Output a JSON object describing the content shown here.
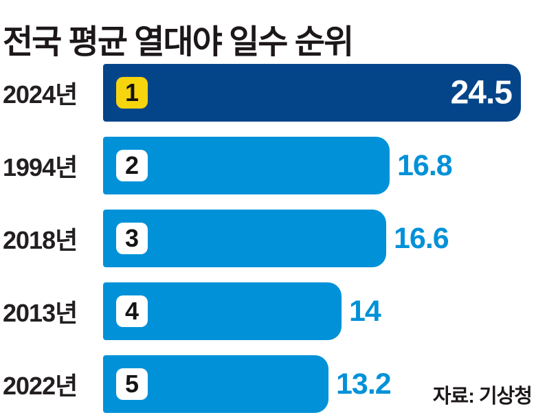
{
  "chart_data": {
    "type": "bar",
    "orientation": "horizontal",
    "title": "전국 평균 열대야 일수 순위",
    "categories": [
      "2024년",
      "1994년",
      "2018년",
      "2013년",
      "2022년"
    ],
    "values": [
      24.5,
      16.8,
      16.6,
      14,
      13.2
    ],
    "ranks": [
      1,
      2,
      3,
      4,
      5
    ],
    "xlim": [
      0,
      24.5
    ],
    "highlight_index": 0,
    "value_label_position": [
      "inside-right",
      "outside-right",
      "outside-right",
      "outside-right",
      "outside-right"
    ],
    "grid": false,
    "legend": false,
    "source": "자료: 기상청"
  },
  "colors": {
    "highlight_bar": "#04458a",
    "bar": "#0091d8",
    "highlight_badge_bg": "#f6d40e",
    "badge_bg": "#ffffff",
    "badge_text": "#141414",
    "value_inside": "#ffffff",
    "value_outside": "#0091d8",
    "title_text": "#1c1719",
    "label_text": "#231f20",
    "background": "#ffffff"
  }
}
